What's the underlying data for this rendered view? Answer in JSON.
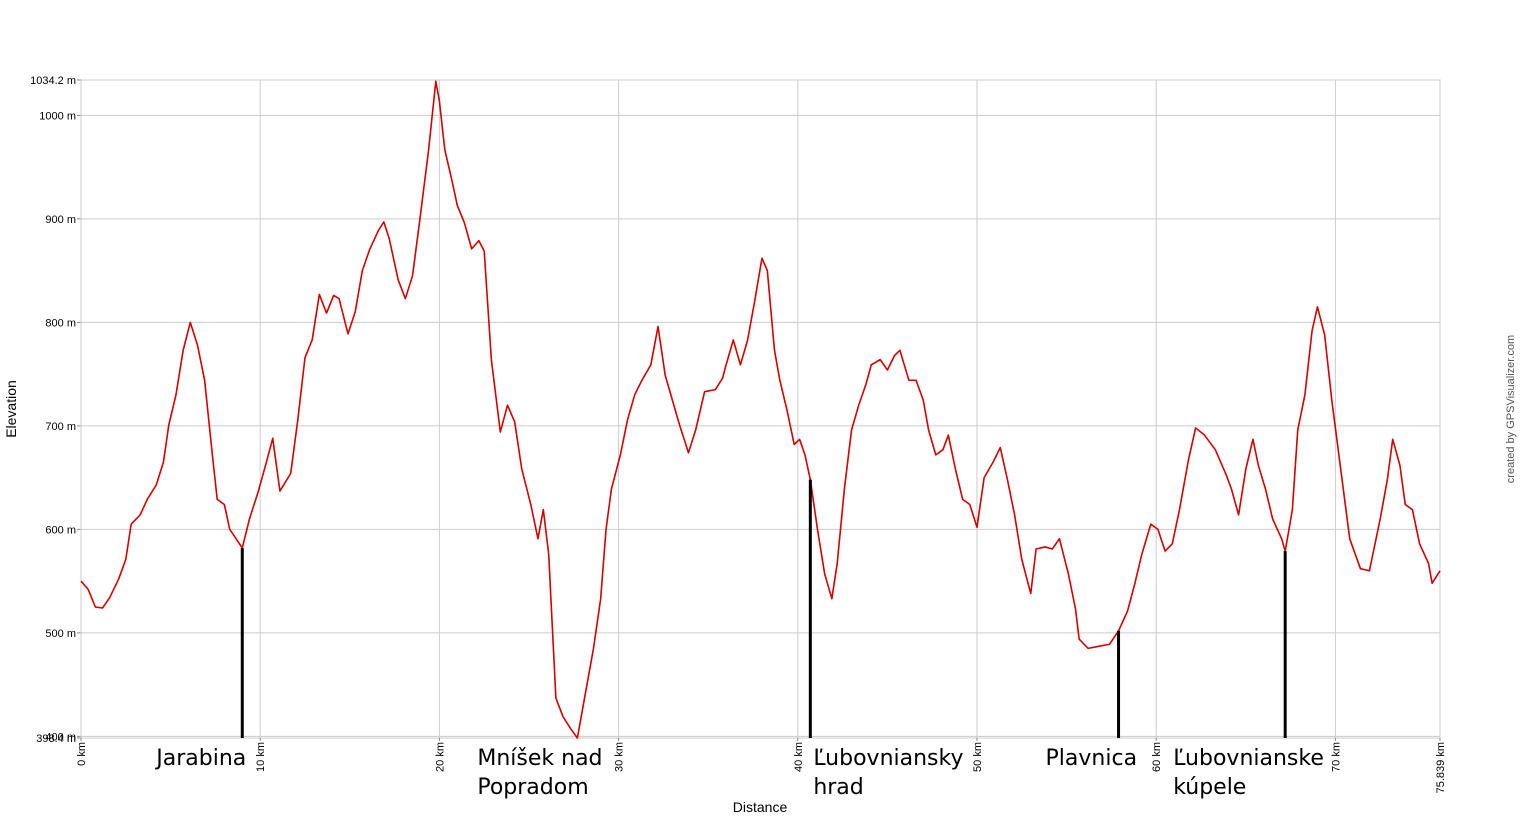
{
  "chart_data": {
    "type": "line",
    "x_label": "Distance",
    "y_label": "Elevation",
    "credit": "created by GPSVisualizer.com",
    "xlim": [
      0,
      75.839
    ],
    "ylim": [
      398.4,
      1034.2
    ],
    "grid": true,
    "xticks": [
      {
        "value": 0,
        "label": "0 km"
      },
      {
        "value": 10,
        "label": "10 km"
      },
      {
        "value": 20,
        "label": "20 km"
      },
      {
        "value": 30,
        "label": "30 km"
      },
      {
        "value": 40,
        "label": "40 km"
      },
      {
        "value": 50,
        "label": "50 km"
      },
      {
        "value": 60,
        "label": "60 km"
      },
      {
        "value": 70,
        "label": "70 km"
      },
      {
        "value": 75.839,
        "label": "75.839 km"
      }
    ],
    "yticks": [
      {
        "value": 398.4,
        "label": "398.4 m"
      },
      {
        "value": 400,
        "label": "400 m"
      },
      {
        "value": 500,
        "label": "500 m"
      },
      {
        "value": 600,
        "label": "600 m"
      },
      {
        "value": 700,
        "label": "700 m"
      },
      {
        "value": 800,
        "label": "800 m"
      },
      {
        "value": 900,
        "label": "900 m"
      },
      {
        "value": 1000,
        "label": "1000 m"
      },
      {
        "value": 1034.2,
        "label": "1034.2 m"
      }
    ],
    "x": [
      0,
      0.4,
      0.8,
      1.2,
      1.6,
      2.1,
      2.5,
      2.8,
      3.3,
      3.7,
      4.2,
      4.6,
      4.9,
      5.3,
      5.7,
      6.1,
      6.5,
      6.9,
      7.3,
      7.6,
      8.0,
      8.3,
      9.0,
      9.4,
      9.9,
      10.3,
      10.7,
      11.1,
      11.7,
      12.1,
      12.5,
      12.9,
      13.3,
      13.7,
      14.1,
      14.4,
      14.9,
      15.3,
      15.7,
      16.1,
      16.6,
      16.9,
      17.2,
      17.7,
      18.1,
      18.5,
      18.9,
      19.4,
      19.8,
      20.0,
      20.3,
      20.7,
      21.0,
      21.4,
      21.8,
      22.2,
      22.5,
      22.9,
      23.4,
      23.8,
      24.2,
      24.6,
      25.1,
      25.5,
      25.8,
      26.1,
      26.5,
      26.9,
      27.3,
      27.7,
      28.1,
      28.6,
      29.0,
      29.3,
      29.6,
      30.1,
      30.5,
      30.9,
      31.3,
      31.8,
      32.2,
      32.6,
      33.0,
      33.4,
      33.9,
      34.3,
      34.8,
      35.4,
      35.8,
      36.0,
      36.4,
      36.8,
      37.2,
      37.6,
      38.0,
      38.3,
      38.7,
      39.0,
      39.4,
      39.8,
      40.1,
      40.4,
      40.7,
      41.1,
      41.5,
      41.9,
      42.2,
      42.6,
      43.0,
      43.4,
      43.8,
      44.1,
      44.6,
      45.0,
      45.4,
      45.7,
      46.2,
      46.6,
      47.0,
      47.3,
      47.7,
      48.1,
      48.4,
      48.8,
      49.2,
      49.6,
      50.0,
      50.4,
      50.9,
      51.3,
      51.7,
      52.1,
      52.5,
      53.0,
      53.3,
      53.8,
      54.2,
      54.6,
      55.1,
      55.5,
      55.7,
      56.2,
      56.8,
      57.4,
      57.9,
      58.4,
      58.8,
      59.2,
      59.7,
      60.1,
      60.5,
      60.9,
      61.3,
      61.8,
      62.2,
      62.7,
      63.3,
      63.9,
      64.2,
      64.6,
      65.0,
      65.4,
      65.7,
      66.1,
      66.5,
      67.0,
      67.2,
      67.6,
      67.9,
      68.3,
      68.7,
      69.0,
      69.4,
      69.8,
      70.3,
      70.8,
      71.4,
      71.9,
      72.5,
      72.9,
      73.2,
      73.6,
      73.9,
      74.3,
      74.7,
      75.2,
      75.4,
      75.839
    ],
    "series": [
      {
        "color": "#d40000",
        "values": [
          550,
          542,
          525,
          524,
          534,
          552,
          571,
          605,
          614,
          629,
          643,
          665,
          701,
          730,
          773,
          800,
          778,
          744,
          677,
          629,
          624,
          600,
          582,
          610,
          637,
          662,
          688,
          637,
          654,
          706,
          766,
          783,
          827,
          809,
          826,
          823,
          789,
          810,
          850,
          870,
          889,
          897,
          881,
          841,
          823,
          845,
          898,
          967,
          1033,
          1014,
          967,
          937,
          913,
          896,
          871,
          879,
          869,
          764,
          694,
          720,
          704,
          658,
          624,
          591,
          619,
          576,
          437,
          419,
          408,
          398.4,
          437,
          485,
          533,
          600,
          639,
          672,
          706,
          730,
          744,
          759,
          796,
          749,
          725,
          701,
          674,
          696,
          733,
          735,
          746,
          759,
          783,
          759,
          783,
          821,
          862,
          850,
          773,
          744,
          715,
          682,
          687,
          672,
          648,
          600,
          557,
          533,
          567,
          639,
          696,
          720,
          740,
          759,
          764,
          754,
          768,
          773,
          744,
          744,
          725,
          696,
          672,
          677,
          691,
          658,
          629,
          624,
          602,
          650,
          665,
          679,
          648,
          614,
          571,
          538,
          581,
          583,
          581,
          591,
          557,
          523,
          494,
          485,
          487,
          489,
          502,
          521,
          547,
          576,
          605,
          600,
          579,
          586,
          619,
          667,
          698,
          691,
          677,
          653,
          639,
          614,
          658,
          687,
          662,
          639,
          610,
          591,
          579,
          619,
          696,
          730,
          792,
          815,
          788,
          725,
          658,
          591,
          562,
          560,
          610,
          648,
          687,
          662,
          624,
          619,
          586,
          567,
          548,
          560
        ]
      }
    ],
    "markers": [
      {
        "label": [
          "Jarabina"
        ],
        "x": 9.0,
        "y": 582
      },
      {
        "label": [
          "Mníšek nad",
          "Popradom"
        ],
        "x": 27.7,
        "y": 398.4
      },
      {
        "label": [
          "Ľubovniansky",
          "hrad"
        ],
        "x": 40.7,
        "y": 648
      },
      {
        "label": [
          "Plavnica"
        ],
        "x": 57.9,
        "y": 502
      },
      {
        "label": [
          "Ľubovnianske",
          "kúpele"
        ],
        "x": 67.2,
        "y": 579
      }
    ]
  }
}
